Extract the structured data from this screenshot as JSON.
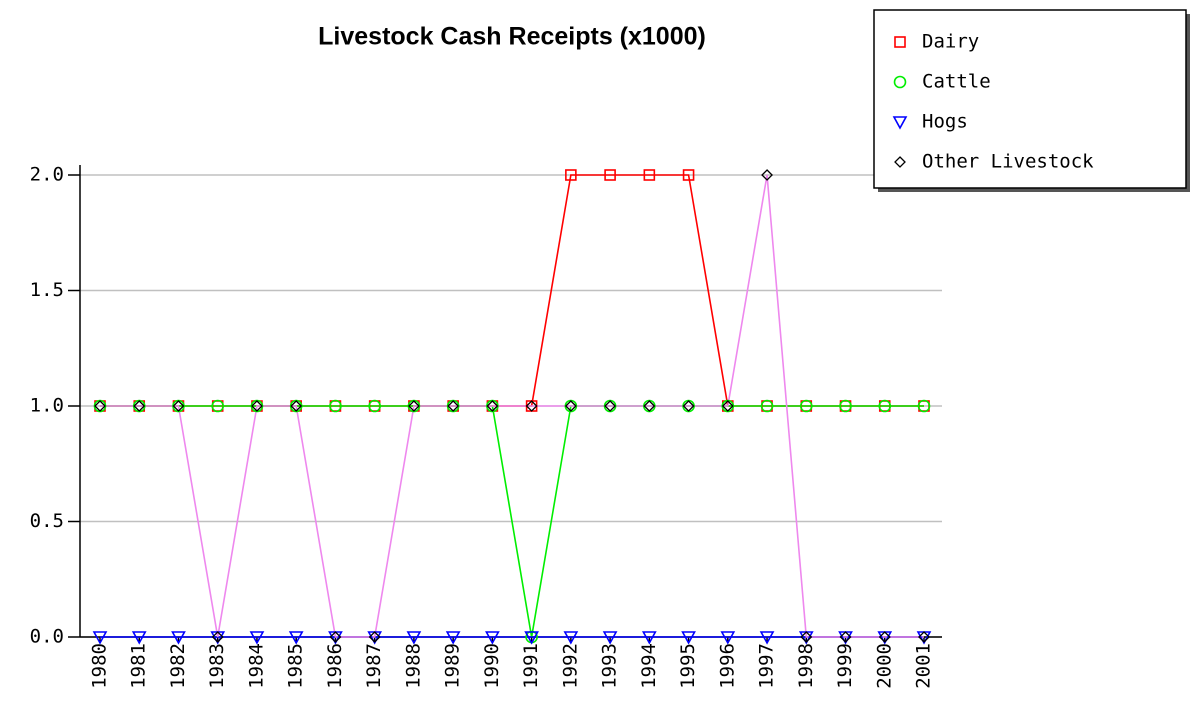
{
  "chart_data": {
    "type": "line",
    "title": "Livestock Cash Receipts (x1000)",
    "categories": [
      "1980",
      "1981",
      "1982",
      "1983",
      "1984",
      "1985",
      "1986",
      "1987",
      "1988",
      "1989",
      "1990",
      "1991",
      "1992",
      "1993",
      "1994",
      "1995",
      "1996",
      "1997",
      "1998",
      "1999",
      "2000",
      "2001"
    ],
    "series": [
      {
        "name": "Dairy",
        "color": "#ff0000",
        "marker": "square",
        "marker_color": "#ff0000",
        "values": [
          1,
          1,
          1,
          1,
          1,
          1,
          1,
          1,
          1,
          1,
          1,
          1,
          2,
          2,
          2,
          2,
          1,
          1,
          1,
          1,
          1,
          1
        ]
      },
      {
        "name": "Cattle",
        "color": "#00ee00",
        "marker": "circle",
        "marker_color": "#00ee00",
        "values": [
          1,
          1,
          1,
          1,
          1,
          1,
          1,
          1,
          1,
          1,
          1,
          0,
          1,
          1,
          1,
          1,
          1,
          1,
          1,
          1,
          1,
          1
        ]
      },
      {
        "name": "Hogs",
        "color": "#0000ff",
        "marker": "triangle-down",
        "marker_color": "#0000ff",
        "values": [
          0,
          0,
          0,
          0,
          0,
          0,
          0,
          0,
          0,
          0,
          0,
          0,
          0,
          0,
          0,
          0,
          0,
          0,
          0,
          0,
          0,
          0
        ]
      },
      {
        "name": "Other Livestock",
        "color": "#ee88ee",
        "marker": "diamond",
        "marker_color": "#000000",
        "values": [
          1,
          1,
          1,
          0,
          1,
          1,
          0,
          0,
          1,
          1,
          1,
          1,
          1,
          1,
          1,
          1,
          1,
          2,
          0,
          0,
          0,
          0
        ]
      }
    ],
    "ylim": [
      0,
      2
    ],
    "yticks": [
      {
        "value": 0,
        "label": "0.0"
      },
      {
        "value": 0.5,
        "label": "0.5"
      },
      {
        "value": 1,
        "label": "1.0"
      },
      {
        "value": 1.5,
        "label": "1.5"
      },
      {
        "value": 2,
        "label": "2.0"
      }
    ],
    "grid": true,
    "legend": "top-right"
  }
}
